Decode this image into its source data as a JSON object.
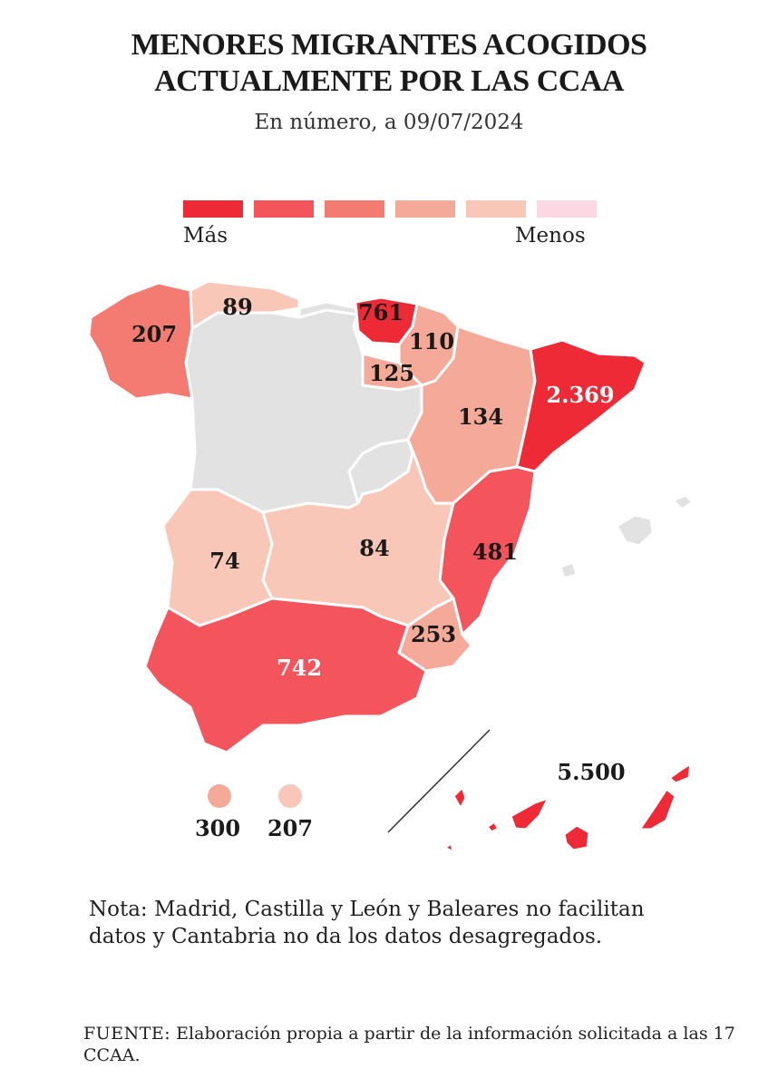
{
  "title_line1": "MENORES MIGRANTES ACOGIDOS",
  "title_line2": "ACTUALMENTE POR LAS CCAA",
  "subtitle": "En número, a 09/07/2024",
  "legend": {
    "high_label": "Más",
    "low_label": "Menos",
    "colors": [
      "#ee2a36",
      "#f4555c",
      "#f47b71",
      "#f5aa99",
      "#f8c7b8",
      "#fbd8e2"
    ]
  },
  "regions": {
    "galicia": "207",
    "asturias": "89",
    "pais_vasco": "761",
    "navarra": "110",
    "la_rioja": "125",
    "aragon": "134",
    "cataluna": "2.369",
    "valencia": "481",
    "castilla_la_mancha": "84",
    "extremadura": "74",
    "murcia": "253",
    "andalucia": "742",
    "canarias": "5.500",
    "ceuta": "300",
    "melilla": "207"
  },
  "no_data_color": "#e2e2e2",
  "note": "Nota: Madrid, Castilla y León y Baleares no facilitan datos y Cantabria no da los datos desagregados.",
  "source_label": "FUENTE:",
  "source_text": " Elaboración propia a partir de la información solicitada a las 17 CCAA."
}
